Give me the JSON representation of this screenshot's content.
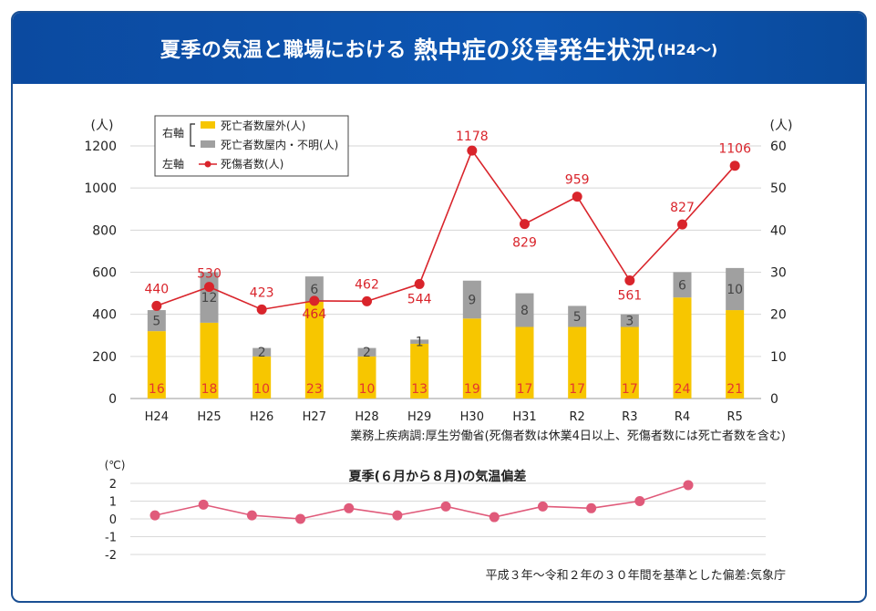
{
  "title": {
    "part1": "夏季の気温と職場における",
    "part2": "熱中症の災害発生状況",
    "part3": "(H24〜)"
  },
  "chart_data": [
    {
      "type": "bar",
      "categories": [
        "H24",
        "H25",
        "H26",
        "H27",
        "H28",
        "H29",
        "H30",
        "H31",
        "R2",
        "R3",
        "R4",
        "R5"
      ],
      "left_axis_unit": "(人)",
      "right_axis_unit": "(人)",
      "left_ylim": [
        0,
        1200
      ],
      "left_ticks": [
        0,
        200,
        400,
        600,
        800,
        1000,
        1200
      ],
      "right_ylim": [
        0,
        60
      ],
      "right_ticks": [
        0,
        10,
        20,
        30,
        40,
        50,
        60
      ],
      "series": [
        {
          "name": "死亡者数屋外(人)",
          "axis": "right",
          "kind": "bar-stack",
          "color": "#f7c600",
          "values": [
            16,
            18,
            10,
            23,
            10,
            13,
            19,
            17,
            17,
            17,
            24,
            21
          ]
        },
        {
          "name": "死亡者数屋内・不明(人)",
          "axis": "right",
          "kind": "bar-stack",
          "color": "#a0a0a0",
          "values": [
            5,
            12,
            2,
            6,
            2,
            1,
            9,
            8,
            5,
            3,
            6,
            10
          ]
        },
        {
          "name": "死傷者数(人)",
          "axis": "left",
          "kind": "line",
          "color": "#d9242b",
          "values": [
            440,
            530,
            423,
            464,
            462,
            544,
            1178,
            829,
            959,
            561,
            827,
            1106
          ]
        }
      ],
      "legend": {
        "right_axis_label": "右軸",
        "left_axis_label": "左軸",
        "placement": "top-left"
      },
      "source": "業務上疾病調:厚生労働省(死傷者数は休業4日以上、死傷者数には死亡者数を含む)",
      "grid": true
    },
    {
      "type": "line",
      "title": "夏季(６月から８月)の気温偏差",
      "unit": "(℃)",
      "ylim": [
        -2,
        2
      ],
      "ticks": [
        -2,
        -1,
        0,
        1,
        2
      ],
      "categories": [
        "H24",
        "H25",
        "H26",
        "H27",
        "H28",
        "H29",
        "H30",
        "H31",
        "R2",
        "R3",
        "R4",
        "R5"
      ],
      "series": [
        {
          "color": "#e05a7a",
          "values": [
            0.2,
            0.8,
            0.2,
            0.0,
            0.6,
            0.2,
            0.7,
            0.1,
            0.7,
            0.6,
            1.0,
            1.9
          ]
        }
      ],
      "source": "平成３年〜令和２年の３０年間を基準とした偏差:気象庁",
      "grid": true
    }
  ]
}
